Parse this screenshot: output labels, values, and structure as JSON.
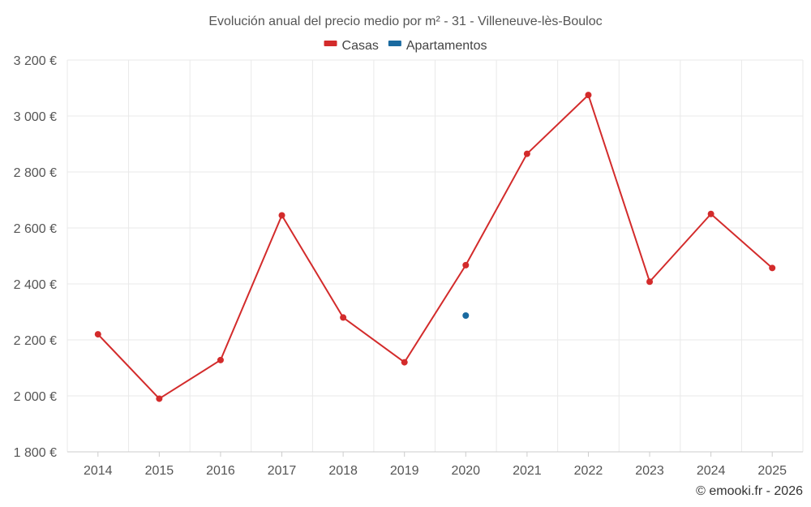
{
  "chart_data": {
    "type": "line",
    "title": "Evolución anual del precio medio por m² - 31 - Villeneuve-lès-Bouloc",
    "categories": [
      "2014",
      "2015",
      "2016",
      "2017",
      "2018",
      "2019",
      "2020",
      "2021",
      "2022",
      "2023",
      "2024",
      "2025"
    ],
    "series": [
      {
        "name": "Casas",
        "color": "#d32b2b",
        "values": [
          2220,
          1990,
          2128,
          2645,
          2280,
          2120,
          2467,
          2865,
          3075,
          2408,
          2650,
          2457
        ]
      },
      {
        "name": "Apartamentos",
        "color": "#1a6aa0",
        "values": [
          null,
          null,
          null,
          null,
          null,
          null,
          2287,
          null,
          null,
          null,
          null,
          null
        ]
      }
    ],
    "ylim": [
      1800,
      3200
    ],
    "yticks": [
      1800,
      2000,
      2200,
      2400,
      2600,
      2800,
      3000,
      3200
    ],
    "ytick_labels": [
      "1 800 €",
      "2 000 €",
      "2 200 €",
      "2 400 €",
      "2 600 €",
      "2 800 €",
      "3 000 €",
      "3 200 €"
    ],
    "xlabel": "",
    "ylabel": "",
    "grid": true,
    "legend_position": "top-center"
  },
  "credit": "© emooki.fr - 2026"
}
